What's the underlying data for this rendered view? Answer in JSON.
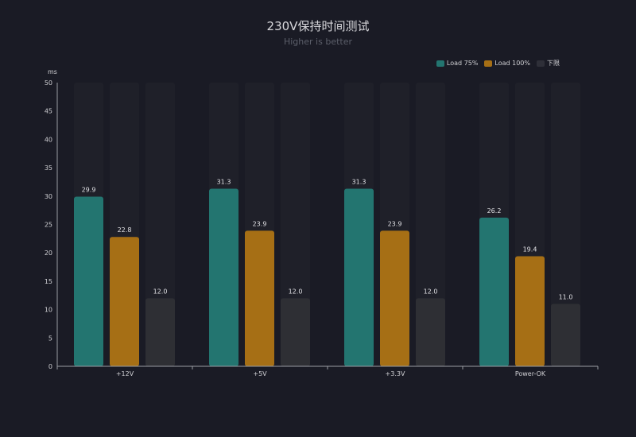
{
  "chart_data": {
    "type": "bar",
    "title": "230V保持时间测试",
    "subtitle": "Higher is better",
    "ylabel": "ms",
    "xlabel": "",
    "ylim": [
      0,
      50
    ],
    "yticks": [
      0,
      5,
      10,
      15,
      20,
      25,
      30,
      35,
      40,
      45,
      50
    ],
    "categories": [
      "+12V",
      "+5V",
      "+3.3V",
      "Power-OK"
    ],
    "series": [
      {
        "name": "Load 75%",
        "color": "#237570",
        "values": [
          29.9,
          31.3,
          31.3,
          26.2
        ]
      },
      {
        "name": "Load 100%",
        "color": "#a66f15",
        "values": [
          22.8,
          23.9,
          23.9,
          19.4
        ]
      },
      {
        "name": "下限",
        "color": "#2e2f34",
        "values": [
          12.0,
          12.0,
          12.0,
          11.0
        ]
      }
    ],
    "background_bar_color": "#1f2029",
    "grid": false,
    "legend": "top-right",
    "data_labels": true
  }
}
